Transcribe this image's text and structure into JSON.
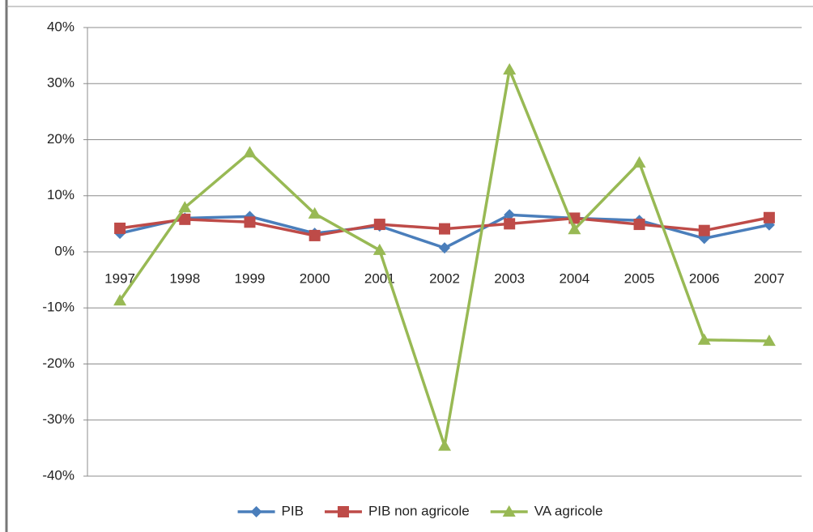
{
  "chart_data": {
    "type": "line",
    "categories": [
      "1997",
      "1998",
      "1999",
      "2000",
      "2001",
      "2002",
      "2003",
      "2004",
      "2005",
      "2006",
      "2007"
    ],
    "series": [
      {
        "name": "PIB",
        "color": "#4a7ebb",
        "marker": "diamond",
        "values": [
          3.3,
          6.0,
          6.3,
          3.3,
          4.6,
          0.7,
          6.6,
          6.0,
          5.6,
          2.4,
          4.8
        ]
      },
      {
        "name": "PIB non agricole",
        "color": "#be4b48",
        "marker": "square",
        "values": [
          4.2,
          5.8,
          5.3,
          2.9,
          4.9,
          4.1,
          5.0,
          6.0,
          4.9,
          3.8,
          6.1
        ]
      },
      {
        "name": "VA agricole",
        "color": "#98b954",
        "marker": "triangle",
        "values": [
          -8.7,
          7.9,
          17.7,
          6.8,
          0.3,
          -34.6,
          32.5,
          4.0,
          15.9,
          -15.7,
          -15.9
        ]
      }
    ],
    "ylim": [
      -40,
      40
    ],
    "yticks": [
      {
        "value": -40,
        "label": "-40%"
      },
      {
        "value": -30,
        "label": "-30%"
      },
      {
        "value": -20,
        "label": "-20%"
      },
      {
        "value": -10,
        "label": "-10%"
      },
      {
        "value": 0,
        "label": "0%"
      },
      {
        "value": 10,
        "label": "10%"
      },
      {
        "value": 20,
        "label": "20%"
      },
      {
        "value": 30,
        "label": "30%"
      },
      {
        "value": 40,
        "label": "40%"
      }
    ],
    "grid": true,
    "legend": "bottom"
  }
}
